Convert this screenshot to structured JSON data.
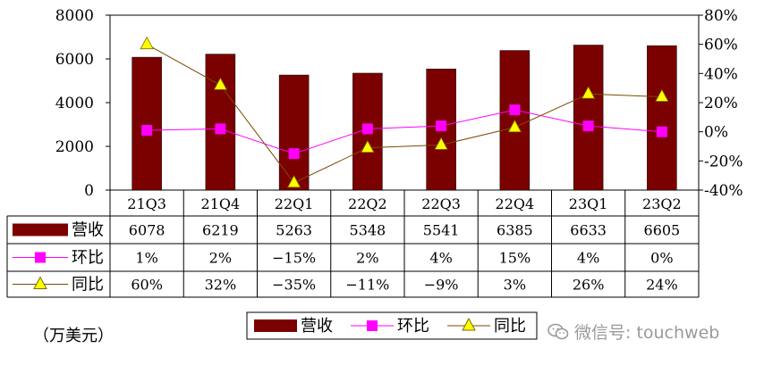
{
  "chart_data": {
    "type": "bar",
    "categories": [
      "21Q3",
      "21Q4",
      "22Q1",
      "22Q2",
      "22Q3",
      "22Q4",
      "23Q1",
      "23Q2"
    ],
    "left_axis": {
      "ticks": [
        "0",
        "2000",
        "4000",
        "6000",
        "8000"
      ],
      "ylim": [
        0,
        8000
      ]
    },
    "right_axis": {
      "ticks": [
        "-40%",
        "-20%",
        "0%",
        "20%",
        "40%",
        "60%",
        "80%"
      ],
      "ylim": [
        -40,
        80
      ]
    },
    "series": [
      {
        "name": "营收",
        "kind": "bar",
        "axis": "left",
        "color": "#7b0000",
        "values": [
          6078,
          6219,
          5263,
          5348,
          5541,
          6385,
          6633,
          6605
        ],
        "labels": [
          "6078",
          "6219",
          "5263",
          "5348",
          "5541",
          "6385",
          "6633",
          "6605"
        ]
      },
      {
        "name": "环比",
        "kind": "line",
        "axis": "right",
        "color": "#ff00ff",
        "marker": "square",
        "values": [
          1,
          2,
          -15,
          2,
          4,
          15,
          4,
          0
        ],
        "labels": [
          "1%",
          "2%",
          "−15%",
          "2%",
          "4%",
          "15%",
          "4%",
          "0%"
        ]
      },
      {
        "name": "同比",
        "kind": "line",
        "axis": "right",
        "color": "#7a4b00",
        "marker": "triangle",
        "marker_color": "#ffff00",
        "values": [
          60,
          32,
          -35,
          -11,
          -9,
          3,
          26,
          24
        ],
        "labels": [
          "60%",
          "32%",
          "−35%",
          "−11%",
          "−9%",
          "3%",
          "26%",
          "24%"
        ]
      }
    ],
    "legend": [
      "营收",
      "环比",
      "同比"
    ],
    "grid": false,
    "legend_position": "bottom-right"
  },
  "unit_label": "（万美元）",
  "watermark": {
    "text": "微信号: touchweb",
    "icon": "wechat-icon"
  }
}
